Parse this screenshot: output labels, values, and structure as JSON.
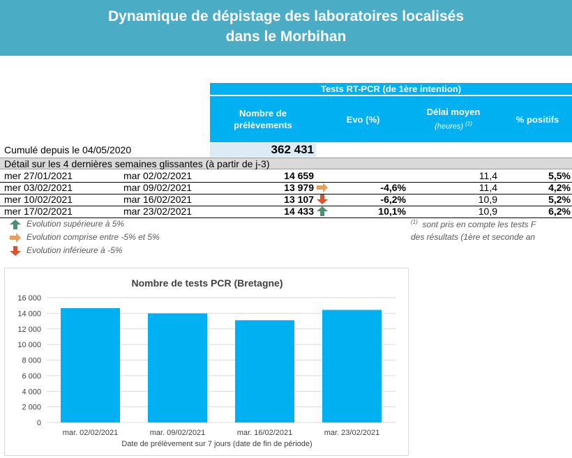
{
  "banner": {
    "line1": "Dynamique de dépistage des laboratoires localisés",
    "line2": "dans le Morbihan"
  },
  "table": {
    "group_header": "Tests RT-PCR (de 1ère intention)",
    "col_prelevements": [
      "Nombre de",
      "prélèvements"
    ],
    "col_evo": "Evo (%)",
    "col_delai": "Délai moyen",
    "col_delai_sub": "(heures)",
    "col_delai_sup": "(1)",
    "col_positifs": "% positifs",
    "cumul_label": "Cumulé depuis le 04/05/2020",
    "cumul_value": "362 431",
    "detail_label": "Détail sur les 4 dernières semaines glissantes (à partir de j-3)",
    "rows": [
      {
        "start": "mer 27/01/2021",
        "end": "mar 02/02/2021",
        "count": "14 659",
        "arrow": "none",
        "evo": "",
        "delai": "11,4",
        "positifs": "5,5%"
      },
      {
        "start": "mer 03/02/2021",
        "end": "mar 09/02/2021",
        "count": "13 979",
        "arrow": "neutral",
        "evo": "-4,6%",
        "delai": "11,4",
        "positifs": "4,2%"
      },
      {
        "start": "mer 10/02/2021",
        "end": "mar 16/02/2021",
        "count": "13 107",
        "arrow": "down",
        "evo": "-6,2%",
        "delai": "10,9",
        "positifs": "5,2%"
      },
      {
        "start": "mer 17/02/2021",
        "end": "mar 23/02/2021",
        "count": "14 433",
        "arrow": "up",
        "evo": "10,1%",
        "delai": "10,9",
        "positifs": "6,2%"
      }
    ]
  },
  "legend": {
    "up": "Evolution supérieure à 5%",
    "neutral": "Evolution comprise entre -5% et 5%",
    "down": "Evolution inférieure à -5%"
  },
  "footnote": {
    "marker": "(1)",
    "line1": "sont pris en compte les tests F",
    "line2": "des résultats (1ère et seconde an"
  },
  "colors": {
    "banner": "#4bacc6",
    "header": "#00b0f0",
    "bar": "#00b0f0",
    "arrow_up": "#4e8f6f",
    "arrow_neutral": "#e6a05a",
    "arrow_down": "#d9542b"
  },
  "chart_data": {
    "type": "bar",
    "title": "Nombre de tests PCR (Bretagne)",
    "xlabel": "Date de prélèvement sur 7 jours (date de fin de période)",
    "ylabel": "",
    "categories": [
      "mar. 02/02/2021",
      "mar. 09/02/2021",
      "mar. 16/02/2021",
      "mar. 23/02/2021"
    ],
    "values": [
      14659,
      13979,
      13107,
      14433
    ],
    "ylim": [
      0,
      16000
    ],
    "yticks": [
      0,
      2000,
      4000,
      6000,
      8000,
      10000,
      12000,
      14000,
      16000
    ],
    "ytick_labels": [
      "0",
      "2 000",
      "4 000",
      "6 000",
      "8 000",
      "10 000",
      "12 000",
      "14 000",
      "16 000"
    ],
    "grid": true,
    "legend": "none"
  }
}
